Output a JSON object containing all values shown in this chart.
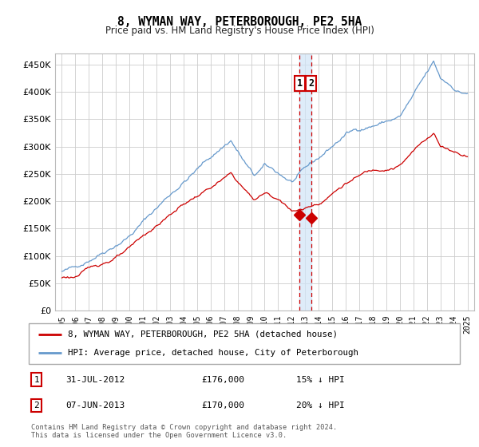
{
  "title": "8, WYMAN WAY, PETERBOROUGH, PE2 5HA",
  "subtitle": "Price paid vs. HM Land Registry's House Price Index (HPI)",
  "legend_line1": "8, WYMAN WAY, PETERBOROUGH, PE2 5HA (detached house)",
  "legend_line2": "HPI: Average price, detached house, City of Peterborough",
  "annotation1_date": "31-JUL-2012",
  "annotation1_price": "£176,000",
  "annotation1_hpi": "15% ↓ HPI",
  "annotation1_year": 2012.58,
  "annotation1_value": 176000,
  "annotation2_date": "07-JUN-2013",
  "annotation2_price": "£170,000",
  "annotation2_hpi": "20% ↓ HPI",
  "annotation2_year": 2013.43,
  "annotation2_value": 170000,
  "red_color": "#cc0000",
  "blue_color": "#6699cc",
  "shade_color": "#d0e4f7",
  "footer": "Contains HM Land Registry data © Crown copyright and database right 2024.\nThis data is licensed under the Open Government Licence v3.0.",
  "ylim_min": 0,
  "ylim_max": 470000,
  "yticks": [
    0,
    50000,
    100000,
    150000,
    200000,
    250000,
    300000,
    350000,
    400000,
    450000
  ],
  "ytick_labels": [
    "£0",
    "£50K",
    "£100K",
    "£150K",
    "£200K",
    "£250K",
    "£300K",
    "£350K",
    "£400K",
    "£450K"
  ],
  "xlim_min": 1994.5,
  "xlim_max": 2025.5
}
